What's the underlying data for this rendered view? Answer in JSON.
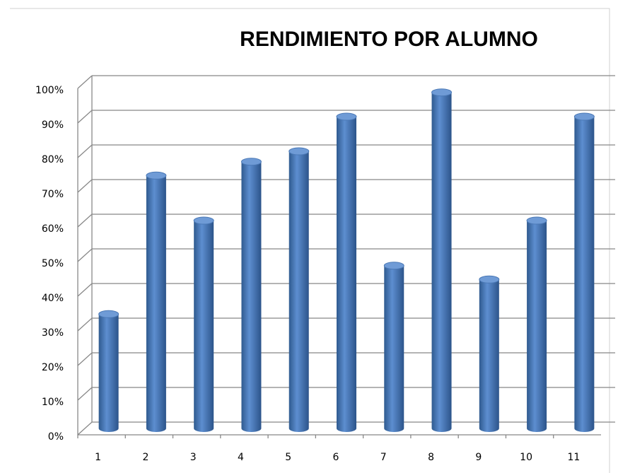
{
  "chart_data": {
    "type": "bar",
    "title": "RENDIMIENTO POR ALUMNO",
    "categories": [
      "1",
      "2",
      "3",
      "4",
      "5",
      "6",
      "7",
      "8",
      "9",
      "10",
      "11"
    ],
    "values": [
      33,
      73,
      60,
      77,
      80,
      90,
      47,
      97,
      43,
      60,
      90
    ],
    "color": "#4f81bd",
    "ylim": [
      0,
      100
    ],
    "yticks": [
      {
        "value": 0,
        "label": "0%"
      },
      {
        "value": 10,
        "label": "10%"
      },
      {
        "value": 20,
        "label": "20%"
      },
      {
        "value": 30,
        "label": "30%"
      },
      {
        "value": 40,
        "label": "40%"
      },
      {
        "value": 50,
        "label": "50%"
      },
      {
        "value": 60,
        "label": "60%"
      },
      {
        "value": 70,
        "label": "70%"
      },
      {
        "value": 80,
        "label": "80%"
      },
      {
        "value": 90,
        "label": "90%"
      },
      {
        "value": 100,
        "label": "100%"
      }
    ],
    "grid": true
  }
}
